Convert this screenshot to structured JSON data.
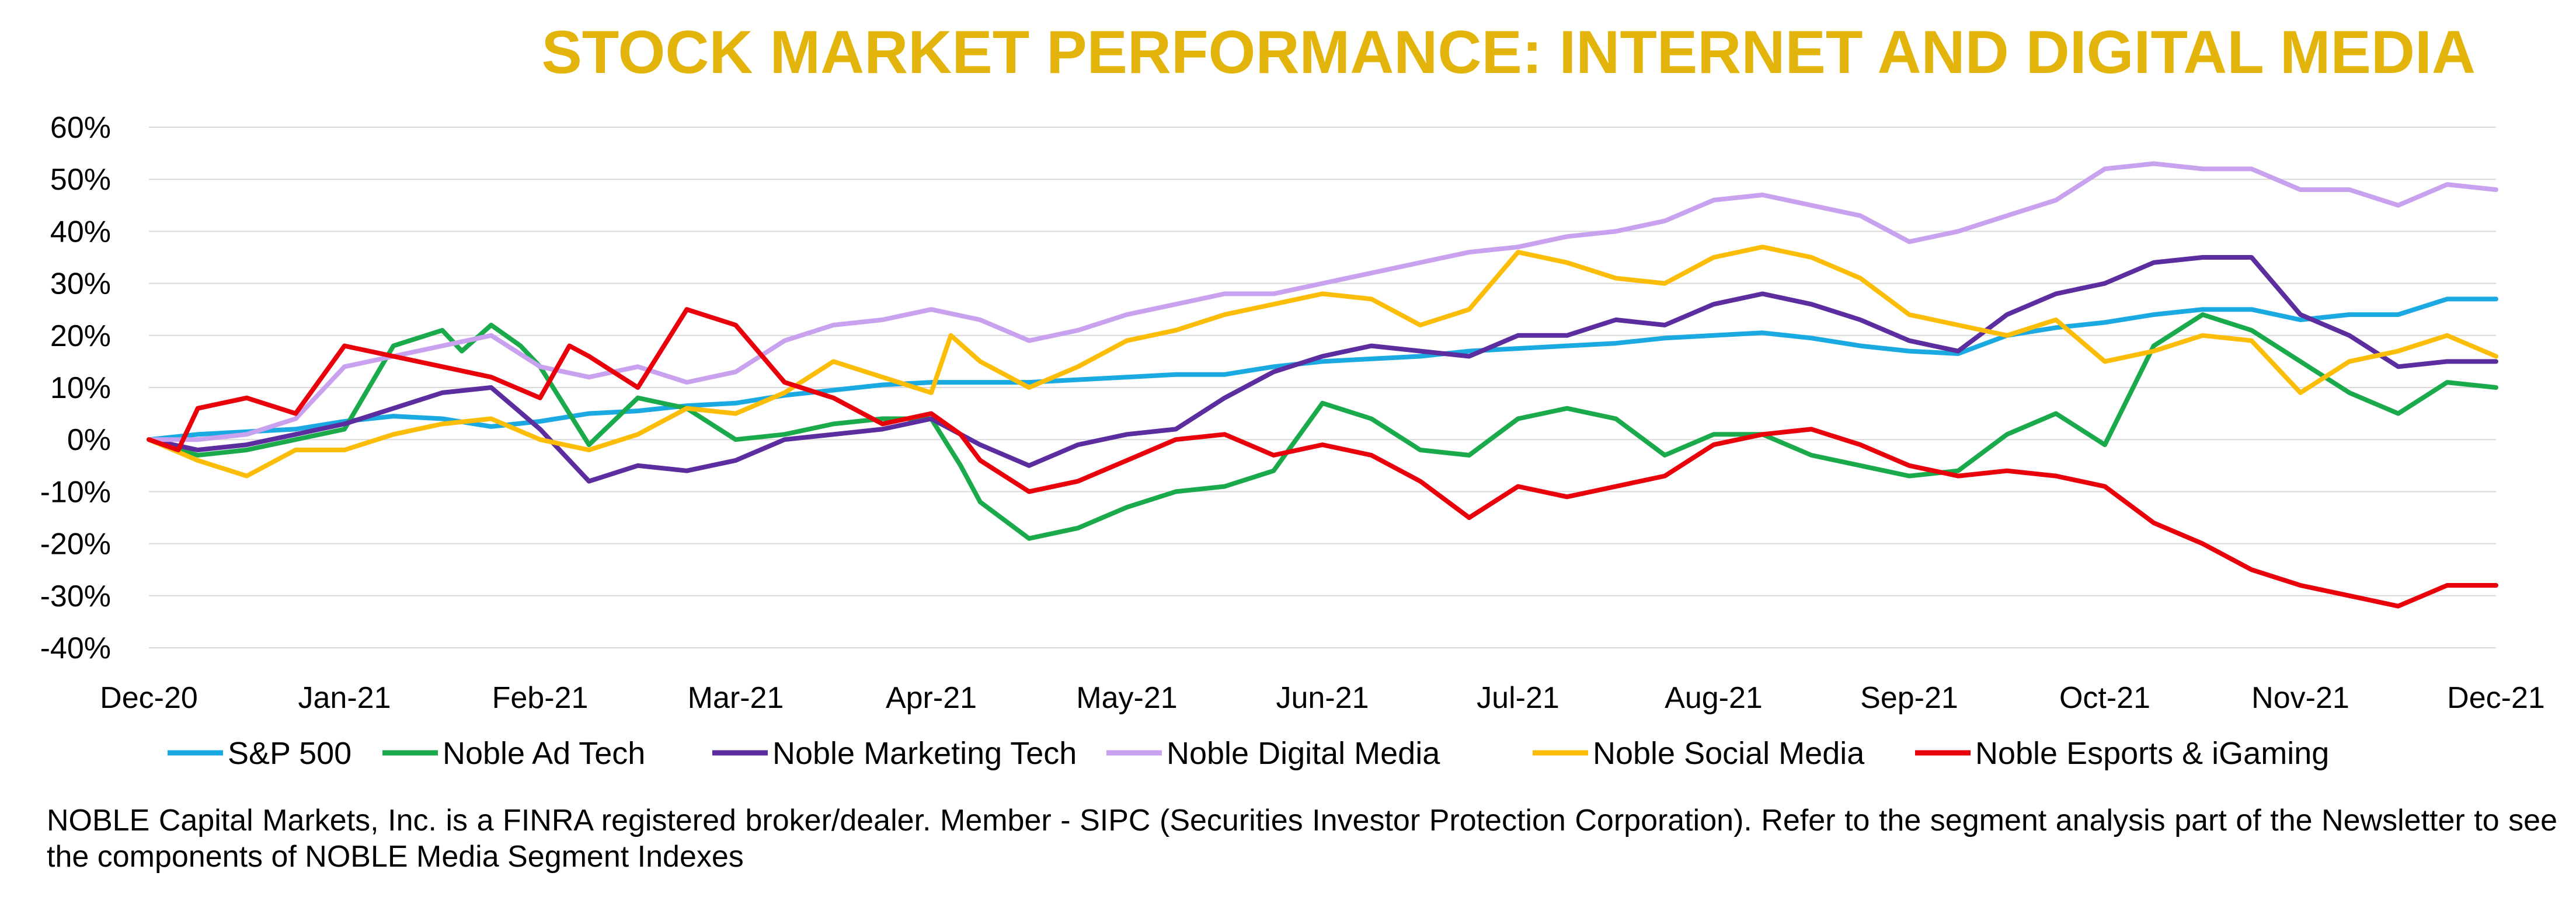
{
  "chart_data": {
    "type": "line",
    "title": "STOCK MARKET PERFORMANCE: INTERNET AND DIGITAL MEDIA",
    "xlabel": "",
    "ylabel": "",
    "x": [
      "Dec-20",
      "Jan-21",
      "Feb-21",
      "Mar-21",
      "Apr-21",
      "May-21",
      "Jun-21",
      "Jul-21",
      "Aug-21",
      "Sep-21",
      "Oct-21",
      "Nov-21",
      "Dec-21"
    ],
    "y_ticks": [
      60,
      50,
      40,
      30,
      20,
      10,
      0,
      -10,
      -20,
      -30,
      -40
    ],
    "y_tick_labels": [
      "60%",
      "50%",
      "40%",
      "30%",
      "20%",
      "10%",
      "0%",
      "-10%",
      "-20%",
      "-30%",
      "-40%"
    ],
    "ylim": [
      -40,
      60
    ],
    "grid": "horizontal",
    "legend_position": "bottom",
    "series": [
      {
        "name": "S&P 500",
        "color": "#1aa9e0",
        "values": [
          [
            0,
            0
          ],
          [
            0.25,
            1
          ],
          [
            0.5,
            1.5
          ],
          [
            0.75,
            2
          ],
          [
            1,
            3.5
          ],
          [
            1.25,
            4.5
          ],
          [
            1.5,
            4
          ],
          [
            1.75,
            2.5
          ],
          [
            2,
            3.5
          ],
          [
            2.25,
            5
          ],
          [
            2.5,
            5.5
          ],
          [
            2.75,
            6.5
          ],
          [
            3,
            7
          ],
          [
            3.25,
            8.5
          ],
          [
            3.5,
            9.5
          ],
          [
            3.75,
            10.5
          ],
          [
            4,
            11
          ],
          [
            4.25,
            11
          ],
          [
            4.5,
            11
          ],
          [
            4.75,
            11.5
          ],
          [
            5,
            12
          ],
          [
            5.25,
            12.5
          ],
          [
            5.5,
            12.5
          ],
          [
            5.75,
            14
          ],
          [
            6,
            15
          ],
          [
            6.25,
            15.5
          ],
          [
            6.5,
            16
          ],
          [
            6.75,
            17
          ],
          [
            7,
            17.5
          ],
          [
            7.25,
            18
          ],
          [
            7.5,
            18.5
          ],
          [
            7.75,
            19.5
          ],
          [
            8,
            20
          ],
          [
            8.25,
            20.5
          ],
          [
            8.5,
            19.5
          ],
          [
            8.75,
            18
          ],
          [
            9,
            17
          ],
          [
            9.25,
            16.5
          ],
          [
            9.5,
            20
          ],
          [
            9.75,
            21.5
          ],
          [
            10,
            22.5
          ],
          [
            10.25,
            24
          ],
          [
            10.5,
            25
          ],
          [
            10.75,
            25
          ],
          [
            11,
            23
          ],
          [
            11.25,
            24
          ],
          [
            11.5,
            24
          ],
          [
            11.75,
            27
          ],
          [
            12,
            27
          ]
        ]
      },
      {
        "name": "Noble Ad Tech",
        "color": "#1aaa4b",
        "values": [
          [
            0,
            0
          ],
          [
            0.25,
            -3
          ],
          [
            0.5,
            -2
          ],
          [
            0.75,
            0
          ],
          [
            1,
            2
          ],
          [
            1.25,
            18
          ],
          [
            1.5,
            21
          ],
          [
            1.6,
            17
          ],
          [
            1.75,
            22
          ],
          [
            1.9,
            18
          ],
          [
            2,
            14
          ],
          [
            2.25,
            -1
          ],
          [
            2.5,
            8
          ],
          [
            2.75,
            6
          ],
          [
            3,
            0
          ],
          [
            3.25,
            1
          ],
          [
            3.5,
            3
          ],
          [
            3.75,
            4
          ],
          [
            4,
            4
          ],
          [
            4.15,
            -5
          ],
          [
            4.25,
            -12
          ],
          [
            4.5,
            -19
          ],
          [
            4.75,
            -17
          ],
          [
            5,
            -13
          ],
          [
            5.25,
            -10
          ],
          [
            5.5,
            -9
          ],
          [
            5.75,
            -6
          ],
          [
            6,
            7
          ],
          [
            6.25,
            4
          ],
          [
            6.5,
            -2
          ],
          [
            6.75,
            -3
          ],
          [
            7,
            4
          ],
          [
            7.25,
            6
          ],
          [
            7.5,
            4
          ],
          [
            7.75,
            -3
          ],
          [
            8,
            1
          ],
          [
            8.25,
            1
          ],
          [
            8.5,
            -3
          ],
          [
            8.75,
            -5
          ],
          [
            9,
            -7
          ],
          [
            9.25,
            -6
          ],
          [
            9.5,
            1
          ],
          [
            9.75,
            5
          ],
          [
            10,
            -1
          ],
          [
            10.25,
            18
          ],
          [
            10.5,
            24
          ],
          [
            10.75,
            21
          ],
          [
            11,
            15
          ],
          [
            11.25,
            9
          ],
          [
            11.5,
            5
          ],
          [
            11.75,
            11
          ],
          [
            12,
            10
          ]
        ]
      },
      {
        "name": "Noble Marketing Tech",
        "color": "#5b2d9e",
        "values": [
          [
            0,
            0
          ],
          [
            0.25,
            -2
          ],
          [
            0.5,
            -1
          ],
          [
            0.75,
            1
          ],
          [
            1,
            3
          ],
          [
            1.25,
            6
          ],
          [
            1.5,
            9
          ],
          [
            1.75,
            10
          ],
          [
            2,
            2
          ],
          [
            2.25,
            -8
          ],
          [
            2.5,
            -5
          ],
          [
            2.75,
            -6
          ],
          [
            3,
            -4
          ],
          [
            3.25,
            0
          ],
          [
            3.5,
            1
          ],
          [
            3.75,
            2
          ],
          [
            4,
            4
          ],
          [
            4.25,
            -1
          ],
          [
            4.5,
            -5
          ],
          [
            4.75,
            -1
          ],
          [
            5,
            1
          ],
          [
            5.25,
            2
          ],
          [
            5.5,
            8
          ],
          [
            5.75,
            13
          ],
          [
            6,
            16
          ],
          [
            6.25,
            18
          ],
          [
            6.5,
            17
          ],
          [
            6.75,
            16
          ],
          [
            7,
            20
          ],
          [
            7.25,
            20
          ],
          [
            7.5,
            23
          ],
          [
            7.75,
            22
          ],
          [
            8,
            26
          ],
          [
            8.25,
            28
          ],
          [
            8.5,
            26
          ],
          [
            8.75,
            23
          ],
          [
            9,
            19
          ],
          [
            9.25,
            17
          ],
          [
            9.5,
            24
          ],
          [
            9.75,
            28
          ],
          [
            10,
            30
          ],
          [
            10.25,
            34
          ],
          [
            10.5,
            35
          ],
          [
            10.75,
            35
          ],
          [
            11,
            24
          ],
          [
            11.25,
            20
          ],
          [
            11.5,
            14
          ],
          [
            11.75,
            15
          ],
          [
            12,
            15
          ]
        ]
      },
      {
        "name": "Noble Digital Media",
        "color": "#c8a2ee",
        "values": [
          [
            0,
            0
          ],
          [
            0.25,
            0
          ],
          [
            0.5,
            1
          ],
          [
            0.75,
            4
          ],
          [
            1,
            14
          ],
          [
            1.25,
            16
          ],
          [
            1.5,
            18
          ],
          [
            1.75,
            20
          ],
          [
            2,
            14
          ],
          [
            2.25,
            12
          ],
          [
            2.5,
            14
          ],
          [
            2.75,
            11
          ],
          [
            3,
            13
          ],
          [
            3.25,
            19
          ],
          [
            3.5,
            22
          ],
          [
            3.75,
            23
          ],
          [
            4,
            25
          ],
          [
            4.25,
            23
          ],
          [
            4.5,
            19
          ],
          [
            4.75,
            21
          ],
          [
            5,
            24
          ],
          [
            5.25,
            26
          ],
          [
            5.5,
            28
          ],
          [
            5.75,
            28
          ],
          [
            6,
            30
          ],
          [
            6.25,
            32
          ],
          [
            6.5,
            34
          ],
          [
            6.75,
            36
          ],
          [
            7,
            37
          ],
          [
            7.25,
            39
          ],
          [
            7.5,
            40
          ],
          [
            7.75,
            42
          ],
          [
            8,
            46
          ],
          [
            8.25,
            47
          ],
          [
            8.5,
            45
          ],
          [
            8.75,
            43
          ],
          [
            9,
            38
          ],
          [
            9.25,
            40
          ],
          [
            9.5,
            43
          ],
          [
            9.75,
            46
          ],
          [
            10,
            52
          ],
          [
            10.25,
            53
          ],
          [
            10.5,
            52
          ],
          [
            10.75,
            52
          ],
          [
            11,
            48
          ],
          [
            11.25,
            48
          ],
          [
            11.5,
            45
          ],
          [
            11.75,
            49
          ],
          [
            12,
            48
          ]
        ]
      },
      {
        "name": "Noble Social Media",
        "color": "#fbbd08",
        "values": [
          [
            0,
            0
          ],
          [
            0.25,
            -4
          ],
          [
            0.5,
            -7
          ],
          [
            0.75,
            -2
          ],
          [
            1,
            -2
          ],
          [
            1.25,
            1
          ],
          [
            1.5,
            3
          ],
          [
            1.75,
            4
          ],
          [
            2,
            0
          ],
          [
            2.25,
            -2
          ],
          [
            2.5,
            1
          ],
          [
            2.75,
            6
          ],
          [
            3,
            5
          ],
          [
            3.25,
            9
          ],
          [
            3.5,
            15
          ],
          [
            3.75,
            12
          ],
          [
            4,
            9
          ],
          [
            4.1,
            20
          ],
          [
            4.25,
            15
          ],
          [
            4.5,
            10
          ],
          [
            4.75,
            14
          ],
          [
            5,
            19
          ],
          [
            5.25,
            21
          ],
          [
            5.5,
            24
          ],
          [
            5.75,
            26
          ],
          [
            6,
            28
          ],
          [
            6.25,
            27
          ],
          [
            6.5,
            22
          ],
          [
            6.75,
            25
          ],
          [
            7,
            36
          ],
          [
            7.25,
            34
          ],
          [
            7.5,
            31
          ],
          [
            7.75,
            30
          ],
          [
            8,
            35
          ],
          [
            8.25,
            37
          ],
          [
            8.5,
            35
          ],
          [
            8.75,
            31
          ],
          [
            9,
            24
          ],
          [
            9.25,
            22
          ],
          [
            9.5,
            20
          ],
          [
            9.75,
            23
          ],
          [
            10,
            15
          ],
          [
            10.25,
            17
          ],
          [
            10.5,
            20
          ],
          [
            10.75,
            19
          ],
          [
            11,
            9
          ],
          [
            11.25,
            15
          ],
          [
            11.5,
            17
          ],
          [
            11.75,
            20
          ],
          [
            12,
            16
          ]
        ]
      },
      {
        "name": "Noble Esports & iGaming",
        "color": "#e8000b",
        "values": [
          [
            0,
            0
          ],
          [
            0.15,
            -2
          ],
          [
            0.25,
            6
          ],
          [
            0.5,
            8
          ],
          [
            0.75,
            5
          ],
          [
            1,
            18
          ],
          [
            1.25,
            16
          ],
          [
            1.5,
            14
          ],
          [
            1.75,
            12
          ],
          [
            2,
            8
          ],
          [
            2.15,
            18
          ],
          [
            2.25,
            16
          ],
          [
            2.5,
            10
          ],
          [
            2.75,
            25
          ],
          [
            3,
            22
          ],
          [
            3.25,
            11
          ],
          [
            3.5,
            8
          ],
          [
            3.75,
            3
          ],
          [
            4,
            5
          ],
          [
            4.15,
            1
          ],
          [
            4.25,
            -4
          ],
          [
            4.5,
            -10
          ],
          [
            4.75,
            -8
          ],
          [
            5,
            -4
          ],
          [
            5.25,
            0
          ],
          [
            5.5,
            1
          ],
          [
            5.75,
            -3
          ],
          [
            6,
            -1
          ],
          [
            6.25,
            -3
          ],
          [
            6.5,
            -8
          ],
          [
            6.75,
            -15
          ],
          [
            7,
            -9
          ],
          [
            7.25,
            -11
          ],
          [
            7.5,
            -9
          ],
          [
            7.75,
            -7
          ],
          [
            8,
            -1
          ],
          [
            8.25,
            1
          ],
          [
            8.5,
            2
          ],
          [
            8.75,
            -1
          ],
          [
            9,
            -5
          ],
          [
            9.25,
            -7
          ],
          [
            9.5,
            -6
          ],
          [
            9.75,
            -7
          ],
          [
            10,
            -9
          ],
          [
            10.25,
            -16
          ],
          [
            10.5,
            -20
          ],
          [
            10.75,
            -25
          ],
          [
            11,
            -28
          ],
          [
            11.25,
            -30
          ],
          [
            11.5,
            -32
          ],
          [
            11.75,
            -28
          ],
          [
            12,
            -28
          ]
        ]
      }
    ]
  },
  "footnote": "NOBLE Capital Markets, Inc. is a FINRA registered broker/dealer. Member - SIPC (Securities Investor Protection Corporation). Refer to the segment analysis part of the Newsletter to see the components of NOBLE Media Segment Indexes"
}
